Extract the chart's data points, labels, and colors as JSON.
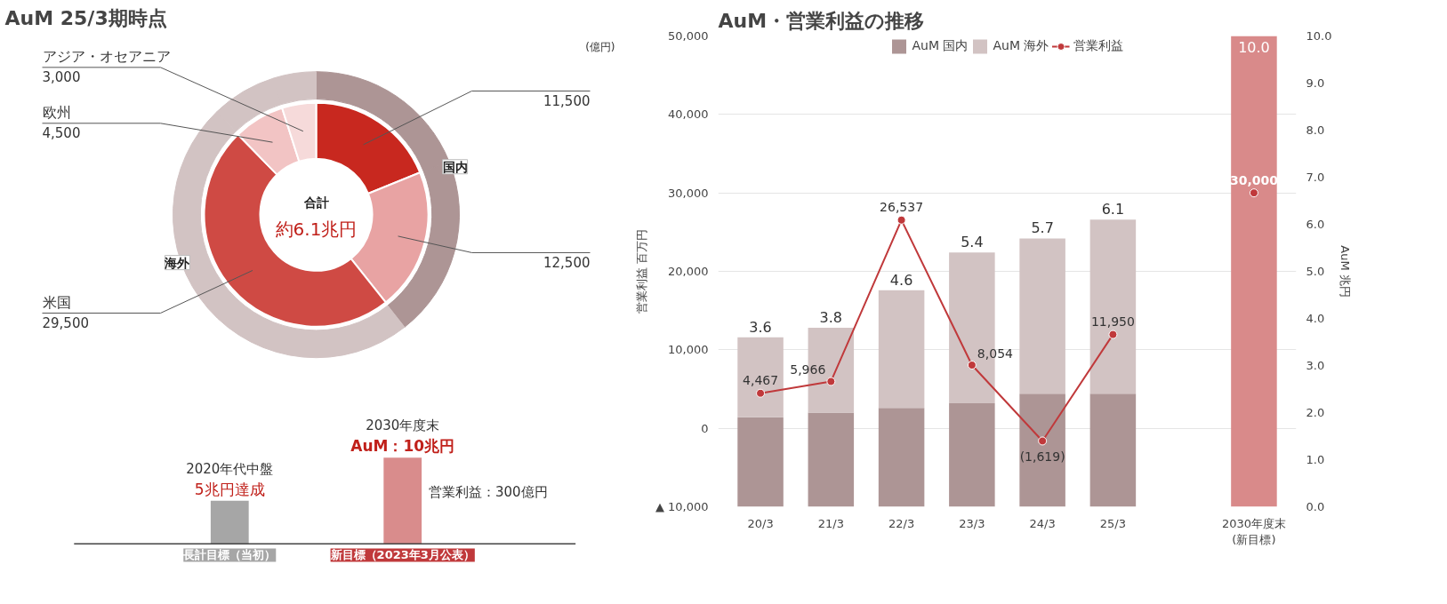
{
  "chart_data": [
    {
      "type": "donut",
      "title": "AuM 25/3期時点",
      "annotations": [
        "合計",
        "約6.1兆円",
        "(億円)",
        "国内",
        "海外"
      ],
      "categories": [
        null,
        null,
        "米国",
        "欧州",
        "アジア・オセアニア"
      ],
      "series": [
        {
          "values": [
            11500,
            12500,
            29500,
            4500,
            3000
          ],
          "value_labels": [
            "11,500",
            "12,500",
            "29,500",
            "4,500",
            "3,000"
          ],
          "colors": [
            "#c8281f",
            "#e8a3a3",
            "#cf4a44",
            "#f2c4c4",
            "#f6dada"
          ]
        },
        {
          "values": [
            18.9,
            20.5,
            48.4,
            7.4,
            4.8
          ],
          "colors": [
            "#ad9595",
            "#ad9595",
            "#d2c3c3",
            "#d2c3c3",
            "#d2c3c3"
          ]
        }
      ]
    },
    {
      "type": "bar",
      "categories": [
        "長計目標（当初）",
        "新目標（2023年3月公表）"
      ],
      "values": [
        5,
        10
      ],
      "colors": [
        "#a6a6a6",
        "#d98c8c"
      ],
      "value_labels": [
        "5兆円達成",
        "AuM：10兆円"
      ],
      "annotations": [
        "2020年代中盤",
        "2030年度末",
        "営業利益：300億円"
      ]
    },
    {
      "type": "bar",
      "title": "AuM・営業利益の推移",
      "categories": [
        "20/3",
        "21/3",
        "22/3",
        "23/3",
        "24/3",
        "25/3",
        null,
        "2030年度末\n(新目標)"
      ],
      "stacked": true,
      "series": [
        {
          "name": "AuM 国内",
          "type": "bar",
          "axis": "y2",
          "color": "#ad9595",
          "values": [
            1.9,
            2.0,
            2.1,
            2.2,
            2.4,
            2.4,
            null,
            null
          ]
        },
        {
          "name": "AuM 海外",
          "type": "bar",
          "axis": "y2",
          "color": "#d2c3c3",
          "values": [
            1.7,
            1.8,
            2.5,
            3.2,
            3.3,
            3.7,
            null,
            null
          ]
        },
        {
          "type": "bar",
          "axis": "y2",
          "color": "#d98a8a",
          "values": [
            null,
            null,
            null,
            null,
            null,
            null,
            null,
            10.0
          ]
        },
        {
          "name": "営業利益",
          "type": "line",
          "color": "#c0393b",
          "values": [
            4467,
            5966,
            26537,
            8054,
            -1619,
            11950,
            null,
            30000
          ],
          "value_labels": [
            "4,467",
            "5,966",
            "26,537",
            "8,054",
            "(1,619)",
            "11,950",
            null,
            "30,000"
          ]
        }
      ],
      "totals": [
        "3.6",
        "3.8",
        "4.6",
        "5.4",
        "5.7",
        "6.1",
        null,
        "10.0"
      ],
      "ylim": [
        -10000,
        50000
      ],
      "yticks": [
        {
          "value": -10000,
          "label": "▲ 10,000"
        },
        0,
        {
          "value": 10000,
          "label": "10,000"
        },
        {
          "value": 20000,
          "label": "20,000"
        },
        {
          "value": 30000,
          "label": "30,000"
        },
        {
          "value": 40000,
          "label": "40,000"
        },
        {
          "value": 50000,
          "label": "50,000"
        }
      ],
      "y2lim": [
        0,
        10
      ],
      "y2ticks": [
        {
          "value": 0,
          "label": "0.0"
        },
        {
          "value": 1,
          "label": "1.0"
        },
        {
          "value": 2,
          "label": "2.0"
        },
        {
          "value": 3,
          "label": "3.0"
        },
        {
          "value": 4,
          "label": "4.0"
        },
        {
          "value": 5,
          "label": "5.0"
        },
        {
          "value": 6,
          "label": "6.0"
        },
        {
          "value": 7,
          "label": "7.0"
        },
        {
          "value": 8,
          "label": "8.0"
        },
        {
          "value": 9,
          "label": "9.0"
        },
        {
          "value": 10,
          "label": "10.0"
        }
      ],
      "ylabel": "営業利益 百万円",
      "y2label": "AuM 兆円",
      "grid": "y",
      "legend": "top",
      "marker": "circle"
    }
  ]
}
